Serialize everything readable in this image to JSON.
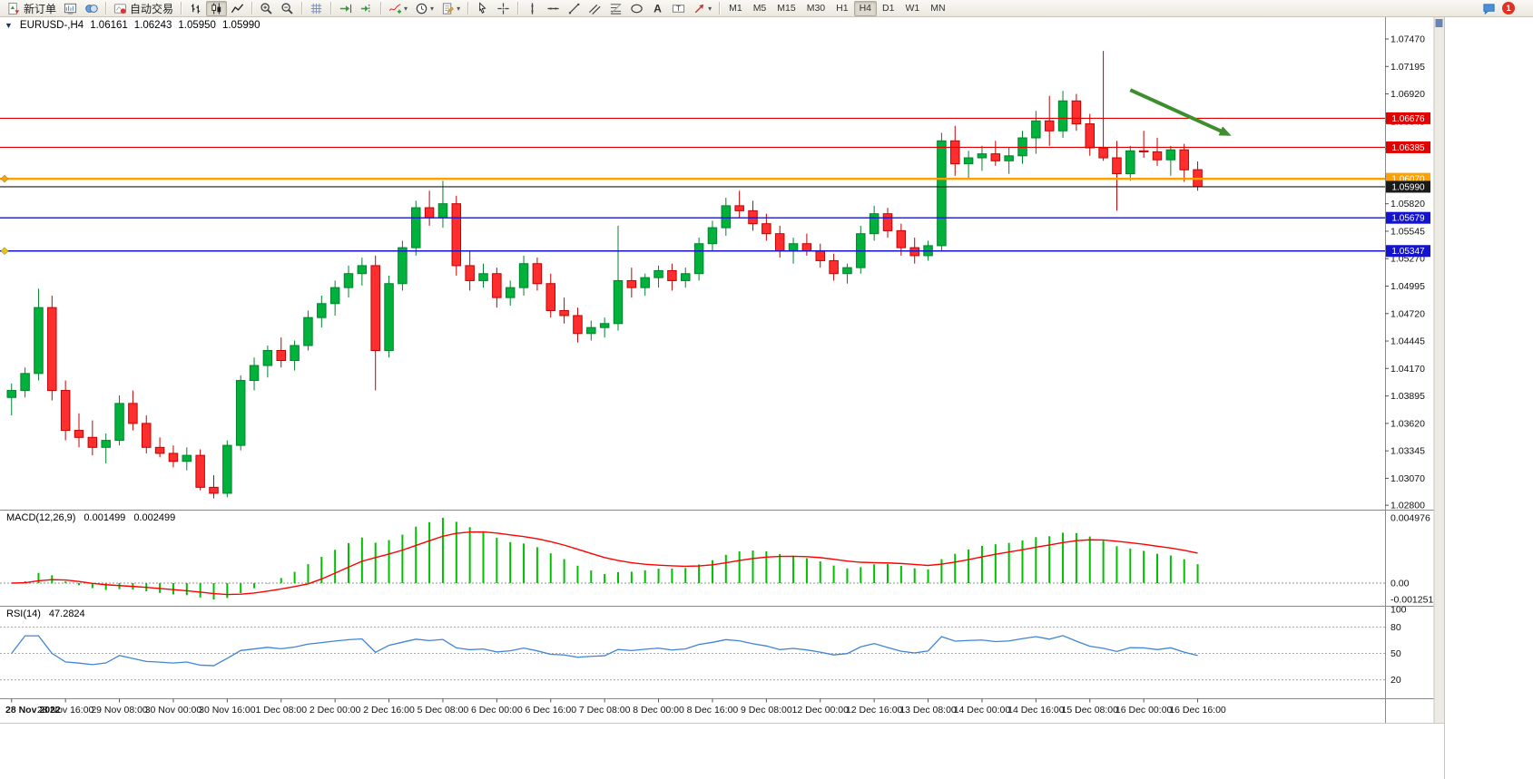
{
  "toolbar": {
    "groups": [
      {
        "items": [
          {
            "name": "new-order-button",
            "icon": "neworder",
            "label": "新订单"
          },
          {
            "name": "charts-button",
            "icon": "charts"
          },
          {
            "name": "profiles-button",
            "icon": "profiles"
          }
        ]
      },
      {
        "items": [
          {
            "name": "auto-trading-button",
            "icon": "autotrading",
            "label": "自动交易"
          }
        ]
      },
      {
        "items": [
          {
            "name": "bar-chart-button",
            "icon": "bars"
          },
          {
            "name": "candlestick-chart-button",
            "icon": "candles",
            "active": true
          },
          {
            "name": "line-chart-button",
            "icon": "linechart"
          }
        ]
      },
      {
        "items": [
          {
            "name": "zoom-in-button",
            "icon": "zoomin"
          },
          {
            "name": "zoom-out-button",
            "icon": "zoomout"
          }
        ]
      },
      {
        "items": [
          {
            "name": "grid-button",
            "icon": "grid"
          }
        ]
      },
      {
        "items": [
          {
            "name": "auto-scroll-button",
            "icon": "autoscroll"
          },
          {
            "name": "chart-shift-button",
            "icon": "chartshift"
          }
        ]
      },
      {
        "items": [
          {
            "name": "indicators-button",
            "icon": "indicators",
            "dropdown": true
          },
          {
            "name": "periods-button",
            "icon": "periods",
            "dropdown": true
          },
          {
            "name": "templates-button",
            "icon": "templates",
            "dropdown": true
          }
        ]
      },
      {
        "items": [
          {
            "name": "cursor-button",
            "icon": "cursor"
          },
          {
            "name": "crosshair-button",
            "icon": "crosshair"
          }
        ]
      },
      {
        "items": [
          {
            "name": "vertical-line-button",
            "icon": "vline"
          },
          {
            "name": "horizontal-line-button",
            "icon": "hline"
          },
          {
            "name": "trendline-button",
            "icon": "trendline"
          },
          {
            "name": "channel-button",
            "icon": "channel"
          },
          {
            "name": "fibonacci-button",
            "icon": "fibo"
          },
          {
            "name": "shapes-button",
            "icon": "shapes"
          },
          {
            "name": "text-button",
            "icon": "textA"
          },
          {
            "name": "label-button",
            "icon": "labeltag"
          },
          {
            "name": "arrows-button",
            "icon": "arrowstool",
            "dropdown": true
          }
        ]
      }
    ],
    "timeframes": {
      "items": [
        "M1",
        "M5",
        "M15",
        "M30",
        "H1",
        "H4",
        "D1",
        "W1",
        "MN"
      ],
      "active": "H4"
    },
    "notifications_badge": "1"
  },
  "chart": {
    "one_click_glyph": "▼",
    "header": {
      "symbol_period": "EURUSD-,H4",
      "open": "1.06161",
      "high": "1.06243",
      "low": "1.05950",
      "close": "1.05990"
    }
  },
  "chart_data": {
    "type": "candlestick",
    "symbol": "EURUSD-",
    "period": "H4",
    "colors": {
      "up_fill": "#00B13C",
      "up_stroke": "#00832C",
      "down_fill": "#FF2E2E",
      "down_stroke": "#C40000",
      "background": "#FFFFFF",
      "axis_text": "#111111",
      "separator": "#8a8a8a"
    },
    "candles": [
      [
        1.0388,
        1.0402,
        1.037,
        1.0395
      ],
      [
        1.0395,
        1.0418,
        1.0388,
        1.0412
      ],
      [
        1.0412,
        1.0497,
        1.0405,
        1.0478
      ],
      [
        1.0478,
        1.049,
        1.0385,
        1.0395
      ],
      [
        1.0395,
        1.0405,
        1.0345,
        1.0355
      ],
      [
        1.0355,
        1.0372,
        1.0338,
        1.0348
      ],
      [
        1.0348,
        1.0365,
        1.033,
        1.0338
      ],
      [
        1.0338,
        1.0352,
        1.0322,
        1.0345
      ],
      [
        1.0345,
        1.039,
        1.034,
        1.0382
      ],
      [
        1.0382,
        1.0395,
        1.0355,
        1.0362
      ],
      [
        1.0362,
        1.037,
        1.0332,
        1.0338
      ],
      [
        1.0338,
        1.0348,
        1.0328,
        1.0332
      ],
      [
        1.0332,
        1.034,
        1.0318,
        1.0324
      ],
      [
        1.0324,
        1.0338,
        1.0315,
        1.033
      ],
      [
        1.033,
        1.0336,
        1.0295,
        1.0298
      ],
      [
        1.0298,
        1.031,
        1.0287,
        1.0292
      ],
      [
        1.0292,
        1.0345,
        1.0288,
        1.034
      ],
      [
        1.034,
        1.041,
        1.0335,
        1.0405
      ],
      [
        1.0405,
        1.0428,
        1.0395,
        1.042
      ],
      [
        1.042,
        1.044,
        1.0408,
        1.0435
      ],
      [
        1.0435,
        1.0448,
        1.0418,
        1.0425
      ],
      [
        1.0425,
        1.0445,
        1.0415,
        1.044
      ],
      [
        1.044,
        1.0475,
        1.0435,
        1.0468
      ],
      [
        1.0468,
        1.049,
        1.0458,
        1.0482
      ],
      [
        1.0482,
        1.0505,
        1.047,
        1.0498
      ],
      [
        1.0498,
        1.052,
        1.0488,
        1.0512
      ],
      [
        1.0512,
        1.0528,
        1.05,
        1.052
      ],
      [
        1.052,
        1.053,
        1.0395,
        1.0435
      ],
      [
        1.0435,
        1.051,
        1.0428,
        1.0502
      ],
      [
        1.0502,
        1.0545,
        1.0495,
        1.0538
      ],
      [
        1.0538,
        1.0585,
        1.053,
        1.0578
      ],
      [
        1.0578,
        1.0595,
        1.056,
        1.0568
      ],
      [
        1.0568,
        1.0605,
        1.0558,
        1.0582
      ],
      [
        1.0582,
        1.059,
        1.051,
        1.052
      ],
      [
        1.052,
        1.0535,
        1.0495,
        1.0505
      ],
      [
        1.0505,
        1.0522,
        1.0498,
        1.0512
      ],
      [
        1.0512,
        1.0518,
        1.0478,
        1.0488
      ],
      [
        1.0488,
        1.0505,
        1.048,
        1.0498
      ],
      [
        1.0498,
        1.053,
        1.049,
        1.0522
      ],
      [
        1.0522,
        1.0528,
        1.0495,
        1.0502
      ],
      [
        1.0502,
        1.0512,
        1.0468,
        1.0475
      ],
      [
        1.0475,
        1.0488,
        1.0462,
        1.047
      ],
      [
        1.047,
        1.0478,
        1.0443,
        1.0452
      ],
      [
        1.0452,
        1.0465,
        1.0445,
        1.0458
      ],
      [
        1.0458,
        1.0468,
        1.0448,
        1.0462
      ],
      [
        1.0462,
        1.056,
        1.0455,
        1.0505
      ],
      [
        1.0505,
        1.0518,
        1.0488,
        1.0498
      ],
      [
        1.0498,
        1.0512,
        1.049,
        1.0508
      ],
      [
        1.0508,
        1.052,
        1.0498,
        1.0515
      ],
      [
        1.0515,
        1.0522,
        1.0495,
        1.0505
      ],
      [
        1.0505,
        1.0518,
        1.0498,
        1.0512
      ],
      [
        1.0512,
        1.0548,
        1.0505,
        1.0542
      ],
      [
        1.0542,
        1.0565,
        1.0535,
        1.0558
      ],
      [
        1.0558,
        1.0588,
        1.055,
        1.058
      ],
      [
        1.058,
        1.0595,
        1.0568,
        1.0575
      ],
      [
        1.0575,
        1.0585,
        1.0555,
        1.0562
      ],
      [
        1.0562,
        1.0572,
        1.0545,
        1.0552
      ],
      [
        1.0552,
        1.056,
        1.0528,
        1.0535
      ],
      [
        1.0535,
        1.0548,
        1.0522,
        1.0542
      ],
      [
        1.0542,
        1.0552,
        1.053,
        1.0535
      ],
      [
        1.0535,
        1.0542,
        1.0518,
        1.0525
      ],
      [
        1.0525,
        1.0532,
        1.0505,
        1.0512
      ],
      [
        1.0512,
        1.0522,
        1.0502,
        1.0518
      ],
      [
        1.0518,
        1.056,
        1.0512,
        1.0552
      ],
      [
        1.0552,
        1.058,
        1.0545,
        1.0572
      ],
      [
        1.0572,
        1.0578,
        1.0548,
        1.0555
      ],
      [
        1.0555,
        1.0562,
        1.053,
        1.0538
      ],
      [
        1.0538,
        1.0548,
        1.0522,
        1.053
      ],
      [
        1.053,
        1.0545,
        1.0525,
        1.054
      ],
      [
        1.054,
        1.0653,
        1.0535,
        1.0645
      ],
      [
        1.0645,
        1.066,
        1.061,
        1.0622
      ],
      [
        1.0622,
        1.0635,
        1.0608,
        1.0628
      ],
      [
        1.0628,
        1.064,
        1.0615,
        1.0632
      ],
      [
        1.0632,
        1.0645,
        1.062,
        1.0625
      ],
      [
        1.0625,
        1.0638,
        1.0612,
        1.063
      ],
      [
        1.063,
        1.0655,
        1.0622,
        1.0648
      ],
      [
        1.0648,
        1.0675,
        1.0632,
        1.0665
      ],
      [
        1.0665,
        1.069,
        1.064,
        1.0655
      ],
      [
        1.0655,
        1.0695,
        1.0648,
        1.0685
      ],
      [
        1.0685,
        1.0692,
        1.0655,
        1.0662
      ],
      [
        1.0662,
        1.0672,
        1.063,
        1.0638
      ],
      [
        1.0638,
        1.0735,
        1.0625,
        1.0628
      ],
      [
        1.0628,
        1.0645,
        1.0575,
        1.0612
      ],
      [
        1.0612,
        1.064,
        1.0605,
        1.0635
      ],
      [
        1.0635,
        1.0655,
        1.0628,
        1.0634
      ],
      [
        1.0634,
        1.0648,
        1.062,
        1.0626
      ],
      [
        1.0626,
        1.064,
        1.061,
        1.0636
      ],
      [
        1.0636,
        1.0642,
        1.0604,
        1.0616
      ],
      [
        1.06161,
        1.06243,
        1.0595,
        1.0599
      ]
    ],
    "price_axis_ticks": [
      "1.07470",
      "1.07195",
      "1.06920",
      "1.06645",
      "1.06370",
      "1.06095",
      "1.05820",
      "1.05545",
      "1.05270",
      "1.04995",
      "1.04720",
      "1.04445",
      "1.04170",
      "1.03895",
      "1.03620",
      "1.03345",
      "1.03070",
      "1.02800"
    ],
    "h_lines": [
      {
        "price": 1.06676,
        "label": "1.06676",
        "color": "#E00000",
        "width": 1.2
      },
      {
        "price": 1.06385,
        "label": "1.06385",
        "color": "#E00000",
        "width": 1.2
      },
      {
        "price": 1.0607,
        "label": "1.06070",
        "color": "#FFA000",
        "width": 2.4
      },
      {
        "price": 1.0599,
        "label": "1.05990",
        "color": "#1A1A1A",
        "width": 1.2
      },
      {
        "price": 1.05679,
        "label": "1.05679",
        "color": "#1414D0",
        "width": 1.4
      },
      {
        "price": 1.05347,
        "label": "1.05347",
        "color": "#1414D0",
        "width": 1.4
      }
    ],
    "anchors": [
      {
        "price": 1.0607,
        "color": "#FFA000"
      },
      {
        "price": 1.05347,
        "color": "#E6C800"
      }
    ],
    "arrow": {
      "from_bar": 83,
      "from_price": 1.0696,
      "to_bar": 90.5,
      "to_price": 1.065,
      "color": "#3E8E2E",
      "width": 4
    },
    "time_labels": [
      "28 Nov 2022",
      "28 Nov 16:00",
      "29 Nov 08:00",
      "30 Nov 00:00",
      "30 Nov 16:00",
      "1 Dec 08:00",
      "2 Dec 00:00",
      "2 Dec 16:00",
      "5 Dec 08:00",
      "6 Dec 00:00",
      "6 Dec 16:00",
      "7 Dec 08:00",
      "8 Dec 00:00",
      "8 Dec 16:00",
      "9 Dec 08:00",
      "12 Dec 00:00",
      "12 Dec 16:00",
      "13 Dec 08:00",
      "14 Dec 00:00",
      "14 Dec 16:00",
      "15 Dec 08:00",
      "16 Dec 00:00",
      "16 Dec 16:00"
    ],
    "indicators": {
      "macd": {
        "label": "MACD(12,26,9)",
        "value_main": "0.001499",
        "value_signal": "0.002499",
        "fast": 12,
        "slow": 26,
        "signal": 9,
        "scale_labels": [
          "0.004976",
          "0.00",
          "-0.001251"
        ],
        "histogram_color": "#00C000",
        "signal_color": "#FF0000"
      },
      "rsi": {
        "label": "RSI(14)",
        "value": "47.2824",
        "period": 14,
        "levels": [
          80,
          50,
          20
        ],
        "scale_labels": [
          "100",
          "80",
          "50",
          "20"
        ],
        "line_color": "#4084D8"
      }
    }
  }
}
